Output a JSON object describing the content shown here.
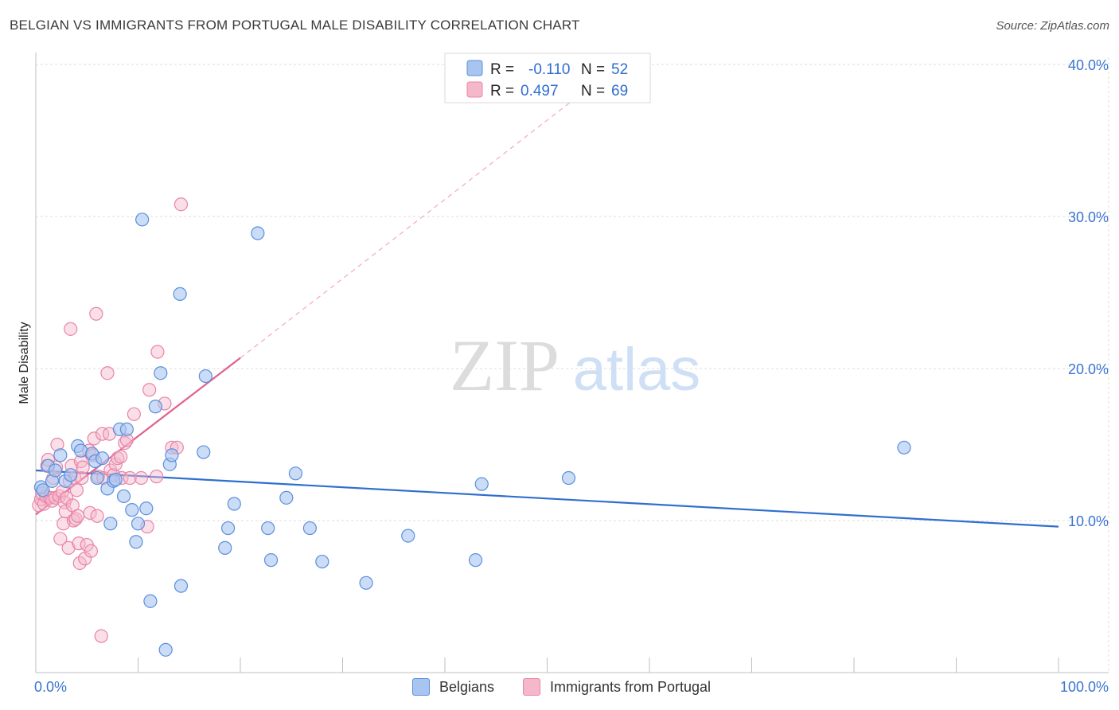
{
  "title": "BELGIAN VS IMMIGRANTS FROM PORTUGAL MALE DISABILITY CORRELATION CHART",
  "source": "Source: ZipAtlas.com",
  "watermark": {
    "zip": "ZIP",
    "atlas": "atlas"
  },
  "colors": {
    "blue_fill": "#a8c4f0",
    "blue_stroke": "#5b8fdc",
    "blue_line": "#2f6fd0",
    "pink_fill": "#f5b8cb",
    "pink_stroke": "#e984a6",
    "pink_line": "#e0608b",
    "tick_text": "#3b74d0"
  },
  "legend": {
    "rows": [
      {
        "r_label": "R =",
        "r_value": "-0.110",
        "n_label": "N =",
        "n_value": "52"
      },
      {
        "r_label": "R =",
        "r_value": "0.497",
        "n_label": "N =",
        "n_value": "69"
      }
    ]
  },
  "bottom_legend": {
    "belgians": "Belgians",
    "portugal": "Immigrants from Portugal"
  },
  "chart_data": {
    "type": "scatter",
    "title": "BELGIAN VS IMMIGRANTS FROM PORTUGAL MALE DISABILITY CORRELATION CHART",
    "xlabel": "",
    "ylabel": "Male Disability",
    "xlim": [
      0,
      100
    ],
    "ylim": [
      0,
      42
    ],
    "x_ticks": [
      "0.0%",
      "100.0%"
    ],
    "y_ticks": [
      {
        "value": 10,
        "label": "10.0%"
      },
      {
        "value": 20,
        "label": "20.0%"
      },
      {
        "value": 30,
        "label": "30.0%"
      },
      {
        "value": 40,
        "label": "40.0%"
      }
    ],
    "grid": true,
    "legend_position": "top-center",
    "series": [
      {
        "name": "Belgians",
        "color": "#a8c4f0",
        "r": -0.11,
        "n": 52,
        "trend": {
          "x": [
            0,
            100
          ],
          "y": [
            13.3,
            9.6
          ]
        },
        "points": [
          [
            0.5,
            12.2
          ],
          [
            0.7,
            12.0
          ],
          [
            1.2,
            13.6
          ],
          [
            1.6,
            12.6
          ],
          [
            1.9,
            13.3
          ],
          [
            2.4,
            14.3
          ],
          [
            2.9,
            12.6
          ],
          [
            3.4,
            13.0
          ],
          [
            4.1,
            14.9
          ],
          [
            4.4,
            14.6
          ],
          [
            5.5,
            14.4
          ],
          [
            5.8,
            13.9
          ],
          [
            6.0,
            12.8
          ],
          [
            6.5,
            14.1
          ],
          [
            7.0,
            12.1
          ],
          [
            7.3,
            9.8
          ],
          [
            7.6,
            12.6
          ],
          [
            7.8,
            12.7
          ],
          [
            8.2,
            16.0
          ],
          [
            8.6,
            11.6
          ],
          [
            8.9,
            16.0
          ],
          [
            9.4,
            10.7
          ],
          [
            9.8,
            8.6
          ],
          [
            10.0,
            9.8
          ],
          [
            10.4,
            29.8
          ],
          [
            10.8,
            10.8
          ],
          [
            11.2,
            4.7
          ],
          [
            11.7,
            17.5
          ],
          [
            12.2,
            19.7
          ],
          [
            12.7,
            1.5
          ],
          [
            13.1,
            13.7
          ],
          [
            13.3,
            14.3
          ],
          [
            14.1,
            24.9
          ],
          [
            14.2,
            5.7
          ],
          [
            16.4,
            14.5
          ],
          [
            16.6,
            19.5
          ],
          [
            18.5,
            8.2
          ],
          [
            18.8,
            9.5
          ],
          [
            19.4,
            11.1
          ],
          [
            21.7,
            28.9
          ],
          [
            22.7,
            9.5
          ],
          [
            23.0,
            7.4
          ],
          [
            24.5,
            11.5
          ],
          [
            25.4,
            13.1
          ],
          [
            26.8,
            9.5
          ],
          [
            28.0,
            7.3
          ],
          [
            32.3,
            5.9
          ],
          [
            36.4,
            9.0
          ],
          [
            43.0,
            7.4
          ],
          [
            43.6,
            12.4
          ],
          [
            52.1,
            12.8
          ],
          [
            84.9,
            14.8
          ]
        ]
      },
      {
        "name": "Immigrants from Portugal",
        "color": "#f5b8cb",
        "r": 0.497,
        "n": 69,
        "trend": {
          "x": [
            0,
            20
          ],
          "y": [
            10.4,
            20.7
          ]
        },
        "trend_dashed": {
          "x": [
            20,
            53
          ],
          "y": [
            20.7,
            37.9
          ]
        },
        "points": [
          [
            0.3,
            11.0
          ],
          [
            0.5,
            11.4
          ],
          [
            0.6,
            11.8
          ],
          [
            0.8,
            11.1
          ],
          [
            1.0,
            11.6
          ],
          [
            1.1,
            13.6
          ],
          [
            1.2,
            14.0
          ],
          [
            1.4,
            11.5
          ],
          [
            1.6,
            11.3
          ],
          [
            1.7,
            12.8
          ],
          [
            1.9,
            11.5
          ],
          [
            2.0,
            13.5
          ],
          [
            2.1,
            15.0
          ],
          [
            2.3,
            11.6
          ],
          [
            2.4,
            8.8
          ],
          [
            2.6,
            11.9
          ],
          [
            2.7,
            9.8
          ],
          [
            2.8,
            11.2
          ],
          [
            2.9,
            10.6
          ],
          [
            3.0,
            11.5
          ],
          [
            3.2,
            8.2
          ],
          [
            3.3,
            12.6
          ],
          [
            3.4,
            22.6
          ],
          [
            3.5,
            13.6
          ],
          [
            3.6,
            11.0
          ],
          [
            3.7,
            10.0
          ],
          [
            3.8,
            12.8
          ],
          [
            3.9,
            10.1
          ],
          [
            4.0,
            12.0
          ],
          [
            4.1,
            10.3
          ],
          [
            4.2,
            8.5
          ],
          [
            4.3,
            7.2
          ],
          [
            4.4,
            13.9
          ],
          [
            4.5,
            12.8
          ],
          [
            4.6,
            13.5
          ],
          [
            4.8,
            7.5
          ],
          [
            5.0,
            8.4
          ],
          [
            5.2,
            14.6
          ],
          [
            5.3,
            10.5
          ],
          [
            5.4,
            8.0
          ],
          [
            5.6,
            14.3
          ],
          [
            5.7,
            15.4
          ],
          [
            5.9,
            23.6
          ],
          [
            6.0,
            10.3
          ],
          [
            6.1,
            12.9
          ],
          [
            6.4,
            2.4
          ],
          [
            6.5,
            15.7
          ],
          [
            6.6,
            12.8
          ],
          [
            7.0,
            19.7
          ],
          [
            7.2,
            15.7
          ],
          [
            7.3,
            13.3
          ],
          [
            7.6,
            13.0
          ],
          [
            7.8,
            13.7
          ],
          [
            8.0,
            14.1
          ],
          [
            8.3,
            14.2
          ],
          [
            8.4,
            12.8
          ],
          [
            8.7,
            15.1
          ],
          [
            8.9,
            15.3
          ],
          [
            9.2,
            12.8
          ],
          [
            9.6,
            17.0
          ],
          [
            10.3,
            12.8
          ],
          [
            10.9,
            9.6
          ],
          [
            11.1,
            18.6
          ],
          [
            11.8,
            12.9
          ],
          [
            11.9,
            21.1
          ],
          [
            12.6,
            17.7
          ],
          [
            13.3,
            14.8
          ],
          [
            13.8,
            14.8
          ],
          [
            14.2,
            30.8
          ]
        ]
      }
    ]
  }
}
